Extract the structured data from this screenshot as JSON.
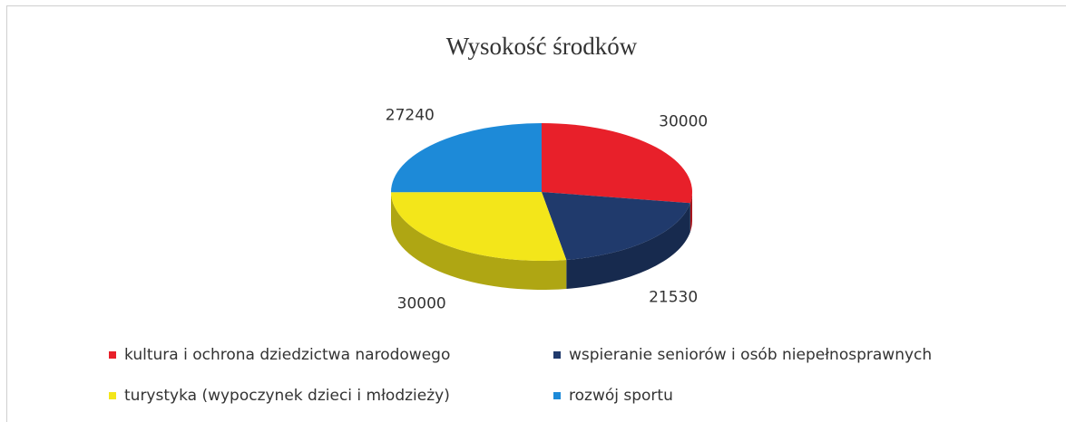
{
  "chart_data": {
    "type": "pie",
    "title": "Wysokość środków",
    "categories": [
      "kultura i ochrona dziedzictwa narodowego",
      "wspieranie seniorów i osób niepełnosprawnych",
      "turystyka (wypoczynek dzieci i młodzieży)",
      "rozwój sportu"
    ],
    "values": [
      30000,
      21530,
      30000,
      27240
    ],
    "colors": [
      "#e8202a",
      "#203a6c",
      "#f3e61a",
      "#1d8ad8"
    ],
    "legend": "bottom"
  }
}
